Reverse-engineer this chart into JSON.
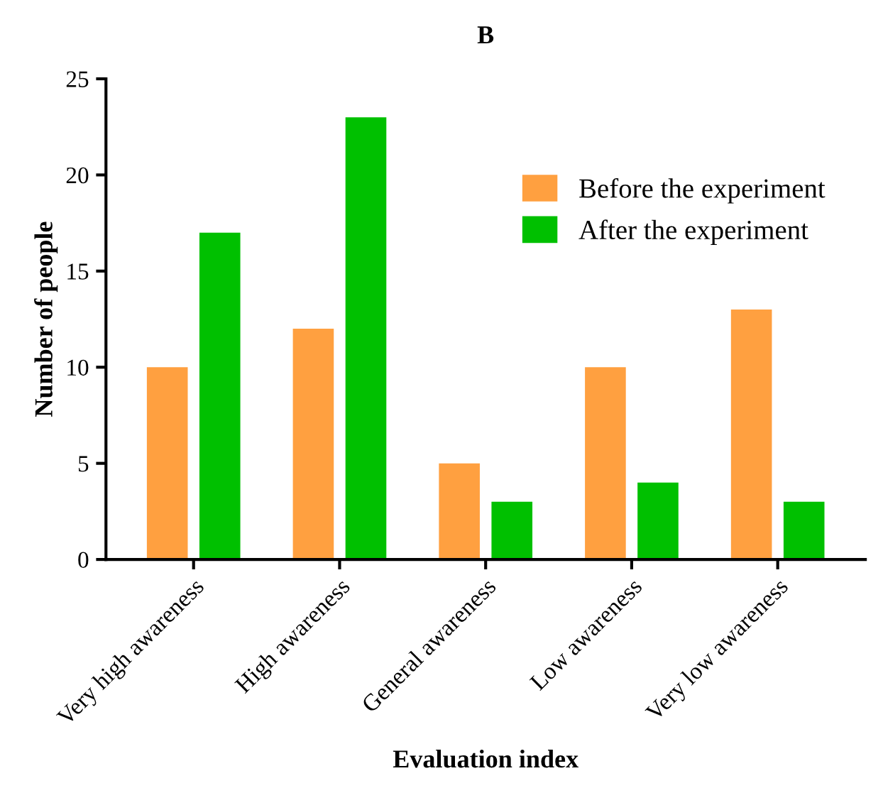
{
  "chart_data": {
    "type": "bar",
    "title": "B",
    "xlabel": "Evaluation index",
    "ylabel": "Number of people",
    "categories": [
      "Very high awareness",
      "High awareness",
      "General awareness",
      "Low awareness",
      "Very low awareness"
    ],
    "series": [
      {
        "name": "Before the experiment",
        "color": "#ffa040",
        "values": [
          10,
          12,
          5,
          10,
          13
        ]
      },
      {
        "name": "After the experiment",
        "color": "#00c000",
        "values": [
          17,
          23,
          3,
          4,
          3
        ]
      }
    ],
    "ylim": [
      0,
      25
    ],
    "yticks": [
      0,
      5,
      10,
      15,
      20,
      25
    ],
    "grid": false,
    "legend": "top right"
  }
}
